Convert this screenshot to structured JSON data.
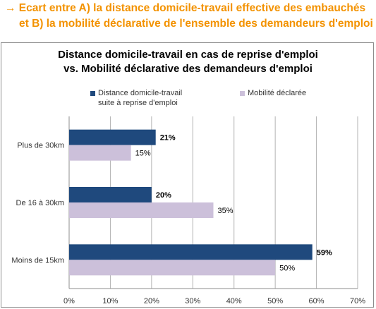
{
  "headline": {
    "line1": "→ Ecart entre A) la distance domicile-travail effective des embauchés",
    "line2": "et B) la mobilité déclarative de l'ensemble des demandeurs d'emploi"
  },
  "colors": {
    "series1": "#1f497d",
    "series2": "#ccc0da",
    "headline": "#f39200"
  },
  "chart_data": {
    "type": "bar",
    "orientation": "horizontal",
    "title_line1": "Distance domicile-travail en cas de reprise d'emploi",
    "title_line2": "vs. Mobilité déclarative des demandeurs d'emploi",
    "categories": [
      "Plus de 30km",
      "De 16 à 30km",
      "Moins de 15km"
    ],
    "series": [
      {
        "name_line1": "Distance domicile-travail",
        "name_line2": "suite à reprise d'emploi",
        "values": [
          21,
          20,
          59
        ],
        "labels": [
          "21%",
          "20%",
          "59%"
        ],
        "bold_labels": true
      },
      {
        "name": "Mobilité déclarée",
        "values": [
          15,
          35,
          50
        ],
        "labels": [
          "15%",
          "35%",
          "50%"
        ],
        "bold_labels": false
      }
    ],
    "xlim": [
      0,
      70
    ],
    "xticks": [
      0,
      10,
      20,
      30,
      40,
      50,
      60,
      70
    ],
    "xtick_labels": [
      "0%",
      "10%",
      "20%",
      "30%",
      "40%",
      "50%",
      "60%",
      "70%"
    ],
    "grid": true,
    "legend_position": "top"
  }
}
